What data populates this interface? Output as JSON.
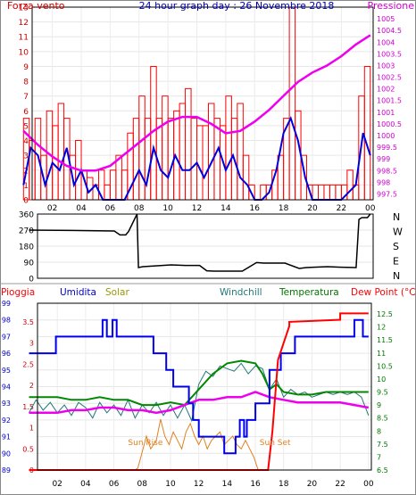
{
  "header": {
    "title": "24 hour graph day : 26 Novembre 2018"
  },
  "panels": {
    "wind": {
      "left_label": "Forza vento",
      "right_label": "Pressione",
      "colors": {
        "left_axis": "#cc0000",
        "right_axis": "#cc00cc",
        "bars": "#ff0000",
        "avg": "#0000dd",
        "pressure": "#ee00ee"
      }
    },
    "direction": {
      "left_ticks": [
        "360",
        "270",
        "180",
        "90",
        "0"
      ],
      "compass": [
        "N",
        "W",
        "S",
        "E",
        "N"
      ],
      "colors": {
        "line": "#000000"
      }
    },
    "climate": {
      "legend": [
        {
          "name": "Pioggia",
          "color": "#ff0000"
        },
        {
          "name": "Umidita",
          "color": "#0000cc"
        },
        {
          "name": "Solar",
          "color": "#999900"
        },
        {
          "name": "Windchill",
          "color": "#227777"
        },
        {
          "name": "Temperatura",
          "color": "#007700"
        },
        {
          "name": "Dew Point (°C)",
          "color": "#ff0000"
        }
      ],
      "annotations": {
        "sunrise": "Sun Rise",
        "sunset": "Sun Set"
      }
    }
  },
  "chart_data": [
    {
      "type": "line",
      "panel": "wind",
      "x_labels": [
        "02",
        "04",
        "06",
        "08",
        "10",
        "12",
        "14",
        "16",
        "18",
        "20",
        "22",
        "00"
      ],
      "xlim": [
        0,
        24
      ],
      "ylim_left": [
        0,
        13
      ],
      "yticks_left": [
        "0",
        "1",
        "2",
        "3",
        "4",
        "5",
        "6",
        "7",
        "8",
        "9",
        "10",
        "11",
        "12",
        "13"
      ],
      "ylim_right": [
        997.25,
        1005.5
      ],
      "yticks_right": [
        "997.5",
        "998",
        "998.5",
        "999",
        "999.5",
        "1000",
        "1000.5",
        "1001",
        "1001.5",
        "1002",
        "1002.5",
        "1003",
        "1003.5",
        "1004",
        "1004.5",
        "1005"
      ],
      "series": [
        {
          "name": "Forza vento",
          "axis": "left",
          "style": "bars",
          "x": [
            0.2,
            0.6,
            1,
            1.4,
            1.8,
            2.2,
            2.6,
            3,
            3.4,
            3.8,
            4.2,
            4.6,
            5,
            5.4,
            5.8,
            6.2,
            6.6,
            7,
            7.4,
            7.8,
            8.2,
            8.6,
            9,
            9.4,
            9.8,
            10.2,
            10.6,
            11,
            11.4,
            11.8,
            12.2,
            12.6,
            13,
            13.4,
            13.8,
            14.2,
            14.6,
            15,
            15.4,
            15.8,
            16.2,
            16.6,
            17,
            17.4,
            17.8,
            18.2,
            18.6,
            19,
            19.4,
            19.8,
            20.2,
            20.6,
            21,
            21.4,
            21.8,
            22.2,
            22.6,
            23,
            23.4,
            23.8
          ],
          "values": [
            5.5,
            4,
            5.5,
            3,
            6,
            5,
            6.5,
            5.5,
            3,
            4,
            2,
            1.5,
            1,
            2,
            1,
            2,
            3,
            2,
            4.5,
            5.5,
            7,
            5.5,
            9,
            5.5,
            7,
            5.5,
            6,
            6.5,
            7.5,
            5.5,
            5,
            5,
            6.5,
            5.5,
            5,
            7,
            5.5,
            6.5,
            3,
            1,
            0,
            1,
            1,
            2,
            3,
            5.5,
            13,
            6,
            3,
            1,
            1,
            1,
            1,
            1,
            1,
            1,
            2,
            1,
            7,
            9
          ]
        },
        {
          "name": "Vento medio",
          "axis": "left",
          "style": "line",
          "x": [
            0,
            0.5,
            1,
            1.5,
            2,
            2.5,
            3,
            3.5,
            4,
            4.5,
            5,
            5.5,
            6,
            6.5,
            7,
            7.5,
            8,
            8.5,
            9,
            9.5,
            10,
            10.5,
            11,
            11.5,
            12,
            12.5,
            13,
            13.5,
            14,
            14.5,
            15,
            15.5,
            16,
            16.5,
            17,
            17.5,
            18,
            18.5,
            19,
            19.5,
            20,
            20.5,
            21,
            21.5,
            22,
            22.5,
            23,
            23.5,
            24
          ],
          "values": [
            1,
            3.5,
            3,
            1,
            2.5,
            2,
            3.5,
            1,
            2,
            0.5,
            1,
            0,
            0,
            0,
            0,
            1,
            2,
            1,
            3.5,
            2,
            1.5,
            3,
            2,
            2,
            2.5,
            1.5,
            2.5,
            3.5,
            2,
            3,
            1.5,
            1,
            0,
            0,
            0.5,
            2,
            4.5,
            5.5,
            4,
            1.5,
            0,
            0,
            0,
            0,
            0,
            0.5,
            1,
            4.5,
            3
          ]
        },
        {
          "name": "Pressione",
          "axis": "right",
          "style": "line",
          "x": [
            0,
            1,
            2,
            3,
            4,
            5,
            6,
            7,
            8,
            9,
            10,
            11,
            12,
            13,
            14,
            15,
            16,
            17,
            18,
            19,
            20,
            21,
            22,
            23,
            24
          ],
          "values": [
            1000.2,
            999.6,
            999.1,
            998.7,
            998.5,
            998.5,
            998.7,
            999.2,
            999.7,
            1000.2,
            1000.6,
            1000.8,
            1000.8,
            1000.5,
            1000.1,
            1000.2,
            1000.6,
            1001.1,
            1001.7,
            1002.3,
            1002.7,
            1003.0,
            1003.4,
            1003.9,
            1004.3
          ]
        }
      ]
    },
    {
      "type": "line",
      "panel": "direction",
      "xlim": [
        0,
        24
      ],
      "ylim": [
        0,
        360
      ],
      "yticks": [
        "0",
        "90",
        "180",
        "270",
        "360"
      ],
      "series": [
        {
          "name": "Direzione vento",
          "x": [
            0,
            3,
            6,
            6.4,
            6.8,
            7,
            7.6,
            7.7,
            8,
            9,
            10,
            11,
            12,
            12.5,
            13,
            14,
            15,
            16,
            16.5,
            17,
            18,
            19,
            19.5,
            20,
            21,
            22,
            23,
            23.2,
            23.4,
            23.8,
            24
          ],
          "values": [
            270,
            268,
            265,
            243,
            243,
            262,
            360,
            60,
            65,
            70,
            75,
            72,
            72,
            42,
            40,
            40,
            40,
            88,
            85,
            85,
            85,
            55,
            60,
            62,
            65,
            62,
            60,
            330,
            340,
            340,
            360
          ]
        }
      ]
    },
    {
      "type": "line",
      "panel": "climate",
      "xlim": [
        0,
        24
      ],
      "ylim_left_rain": [
        0,
        3.75
      ],
      "yticks_left_rain": [
        "0",
        "0.5",
        "1",
        "1.5",
        "2",
        "2.5",
        "3",
        "3.5"
      ],
      "ylim_left_humidity": [
        89,
        99
      ],
      "yticks_left_humidity": [
        "89",
        "90",
        "91",
        "92",
        "93",
        "94",
        "95",
        "96",
        "97",
        "98",
        "99"
      ],
      "ylim_right": [
        6.5,
        12.5
      ],
      "yticks_right": [
        "6.5",
        "7",
        "7.5",
        "8",
        "8.5",
        "9",
        "9.5",
        "10",
        "10.5",
        "11",
        "11.5",
        "12",
        "12.5"
      ],
      "series": [
        {
          "name": "Pioggia",
          "axis": "rain",
          "x": [
            0,
            16.9,
            17.2,
            17.6,
            18,
            18.4,
            18.4,
            22,
            22,
            24
          ],
          "values": [
            0,
            0,
            0.9,
            2.6,
            3,
            3.4,
            3.5,
            3.55,
            3.7,
            3.7
          ]
        },
        {
          "name": "Umidita",
          "axis": "humidity",
          "x": [
            0,
            1.9,
            1.9,
            5.2,
            5.2,
            5.5,
            5.5,
            5.9,
            5.9,
            6.2,
            6.2,
            8.8,
            8.8,
            9.7,
            9.7,
            10.2,
            10.2,
            11.3,
            11.3,
            11.6,
            11.6,
            12,
            12,
            13.8,
            13.8,
            14.6,
            14.6,
            14.9,
            14.9,
            15.2,
            15.2,
            15.4,
            15.4,
            16,
            16,
            17,
            17,
            17.8,
            17.8,
            18.8,
            18.8,
            23,
            23,
            23.6,
            23.6,
            24
          ],
          "values": [
            96,
            96,
            97,
            97,
            98,
            98,
            97,
            97,
            98,
            98,
            97,
            97,
            96,
            96,
            95,
            95,
            94,
            94,
            93,
            93,
            92,
            92,
            91,
            91,
            90,
            90,
            91,
            91,
            92,
            92,
            91,
            91,
            92,
            92,
            93,
            93,
            95,
            95,
            96,
            96,
            97,
            97,
            98,
            98,
            97,
            97
          ]
        },
        {
          "name": "Temperatura",
          "axis": "right",
          "x": [
            0,
            1,
            2,
            3,
            4,
            5,
            6,
            7,
            8,
            9,
            10,
            11,
            12,
            13,
            14,
            15,
            16,
            16.5,
            17,
            17.5,
            18,
            19,
            20,
            21,
            22,
            23,
            24
          ],
          "values": [
            9.3,
            9.3,
            9.3,
            9.2,
            9.2,
            9.3,
            9.2,
            9.2,
            9.0,
            9.0,
            9.1,
            9.0,
            9.6,
            10.2,
            10.6,
            10.7,
            10.6,
            10.2,
            9.6,
            9.8,
            9.5,
            9.4,
            9.4,
            9.5,
            9.5,
            9.5,
            9.5
          ]
        },
        {
          "name": "Windchill",
          "axis": "right",
          "x": [
            0,
            0.5,
            1,
            1.5,
            2,
            2.5,
            3,
            3.5,
            4,
            4.5,
            5,
            5.5,
            6,
            6.5,
            7,
            7.5,
            8,
            8.5,
            9,
            9.5,
            10,
            10.5,
            11,
            11.5,
            12,
            12.5,
            13,
            13.5,
            14,
            14.5,
            15,
            15.5,
            16,
            16.5,
            17,
            17.5,
            18,
            18.5,
            19,
            19.5,
            20,
            20.5,
            21,
            21.5,
            22,
            22.5,
            23,
            23.5,
            24
          ],
          "values": [
            8.7,
            9.2,
            8.8,
            9.1,
            8.7,
            9.0,
            8.6,
            9.1,
            8.9,
            8.5,
            9.1,
            8.7,
            9.0,
            8.6,
            9.2,
            8.5,
            9.0,
            8.7,
            9.1,
            8.6,
            9.0,
            8.5,
            9.0,
            8.4,
            9.8,
            10.3,
            10.1,
            10.5,
            10.4,
            10.3,
            10.6,
            10.2,
            10.5,
            10.4,
            9.6,
            10.0,
            9.3,
            9.6,
            9.4,
            9.5,
            9.3,
            9.4,
            9.5,
            9.4,
            9.5,
            9.4,
            9.5,
            9.3,
            8.6
          ]
        },
        {
          "name": "Dew Point",
          "axis": "right",
          "x": [
            0,
            1,
            2,
            3,
            4,
            5,
            6,
            7,
            8,
            9,
            10,
            11,
            12,
            13,
            14,
            15,
            16,
            17,
            18,
            19,
            20,
            21,
            22,
            23,
            24
          ],
          "values": [
            8.7,
            8.7,
            8.7,
            8.8,
            8.8,
            8.9,
            8.9,
            8.8,
            8.8,
            8.7,
            8.8,
            9.0,
            9.2,
            9.2,
            9.3,
            9.3,
            9.5,
            9.3,
            9.2,
            9.1,
            9.1,
            9.1,
            9.1,
            9.0,
            8.9
          ]
        },
        {
          "name": "Solar",
          "axis": "rain",
          "x": [
            7.5,
            7.7,
            7.9,
            8.3,
            8.6,
            9.0,
            9.3,
            9.6,
            9.9,
            10.2,
            10.5,
            10.8,
            11.1,
            11.4,
            11.7,
            12.0,
            12.3,
            12.6,
            12.9,
            13.2,
            13.5,
            13.8,
            14.1,
            14.4,
            14.7,
            15.0,
            15.3,
            15.6,
            15.9,
            16.2
          ],
          "values": [
            0,
            0.05,
            0.3,
            0.8,
            0.5,
            0.7,
            1.2,
            0.8,
            0.6,
            0.9,
            0.7,
            0.5,
            0.9,
            1.1,
            0.8,
            0.6,
            0.8,
            0.5,
            0.7,
            0.8,
            0.9,
            0.6,
            0.7,
            0.8,
            0.6,
            0.5,
            0.7,
            0.5,
            0.3,
            0
          ]
        }
      ]
    }
  ]
}
